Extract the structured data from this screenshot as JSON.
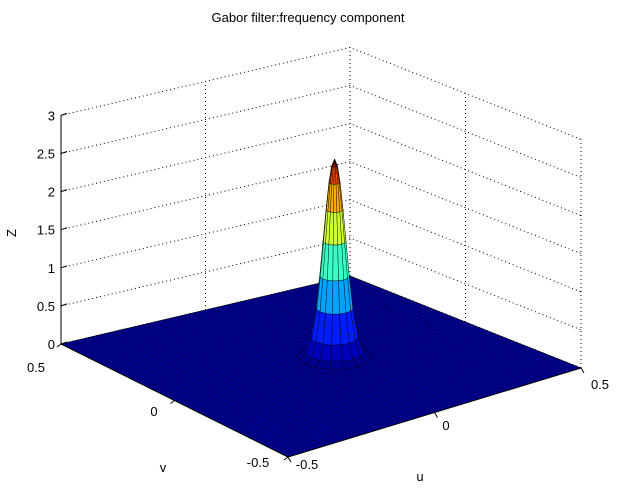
{
  "chart_data": {
    "type": "surface",
    "title": "Gabor filter:frequency component",
    "xlabel": "u",
    "ylabel": "v",
    "zlabel": "Z",
    "xlim": [
      -0.5,
      0.5
    ],
    "ylim": [
      -0.5,
      0.5
    ],
    "zlim": [
      0,
      3
    ],
    "x_ticks": [
      "-0.5",
      "0",
      "0.5"
    ],
    "y_ticks": [
      "-0.5",
      "0",
      "0.5"
    ],
    "z_ticks": [
      "0",
      "0.5",
      "1",
      "1.5",
      "2",
      "2.5",
      "3"
    ],
    "grid": true,
    "colormap": "jet",
    "surface_color": "#00008f",
    "peak": {
      "u": 0.05,
      "v": 0.0,
      "z": 2.6
    }
  }
}
